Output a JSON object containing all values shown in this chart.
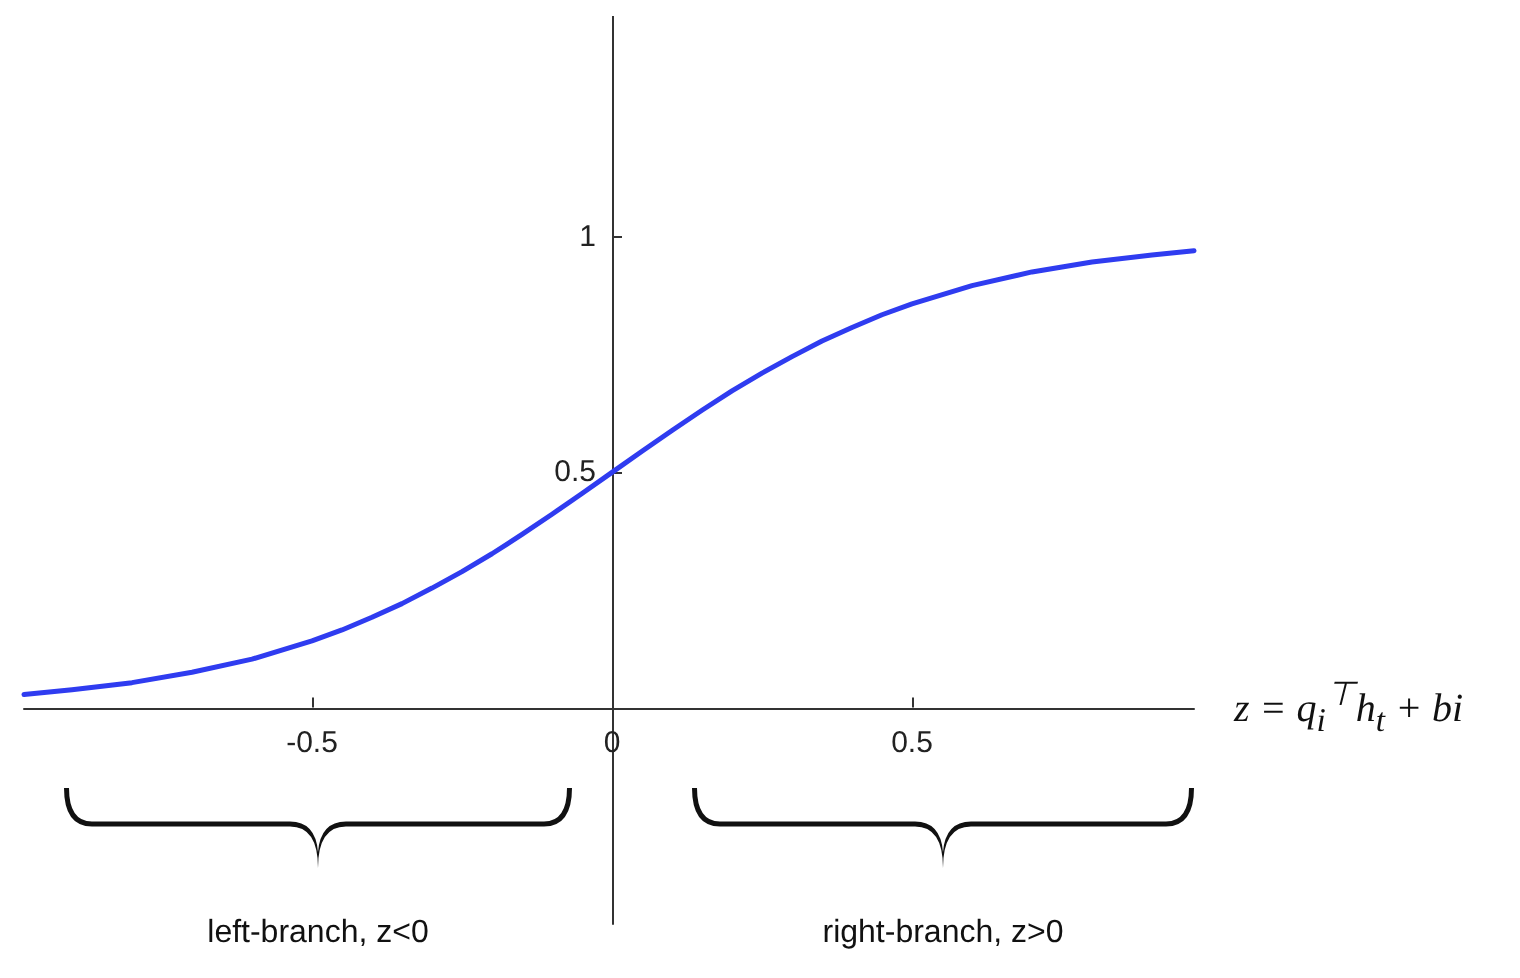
{
  "chart_data": {
    "type": "line",
    "xlabel": "z = q$_{i}$$^{⊤}$h$_{t}$ + bi",
    "annotations": [
      "left-branch, z<0",
      "right-branch, z>0"
    ],
    "x": [
      -0.98,
      -0.9,
      -0.8,
      -0.7,
      -0.6,
      -0.5,
      -0.45,
      -0.4,
      -0.35,
      -0.3,
      -0.25,
      -0.2,
      -0.15,
      -0.1,
      -0.05,
      0,
      0.05,
      0.1,
      0.15,
      0.2,
      0.25,
      0.3,
      0.35,
      0.4,
      0.45,
      0.5,
      0.6,
      0.7,
      0.8,
      0.9,
      0.97
    ],
    "series": [
      {
        "color": "#2f3cf0",
        "values": [
          0.028,
          0.038,
          0.053,
          0.075,
          0.103,
          0.142,
          0.165,
          0.192,
          0.221,
          0.254,
          0.289,
          0.327,
          0.368,
          0.411,
          0.455,
          0.5,
          0.545,
          0.589,
          0.632,
          0.673,
          0.711,
          0.746,
          0.779,
          0.808,
          0.835,
          0.858,
          0.897,
          0.926,
          0.947,
          0.962,
          0.971
        ]
      }
    ],
    "xlim": [
      -0.98,
      0.97
    ],
    "ylim": [
      -0.46,
      1.47
    ],
    "xticks": [
      -0.5,
      0,
      0.5
    ],
    "yticks": [
      0.5,
      1
    ],
    "marker": "none",
    "line_style": "solid"
  }
}
